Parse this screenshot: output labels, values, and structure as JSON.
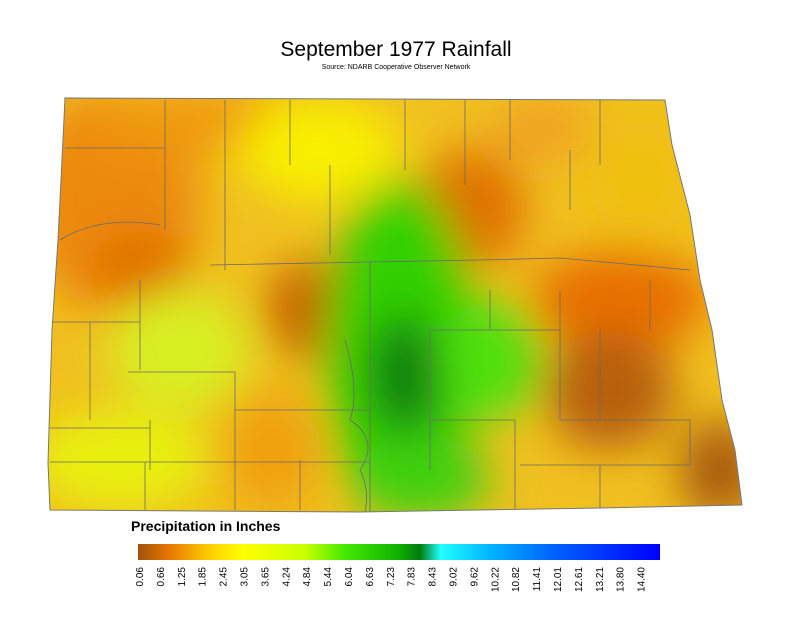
{
  "header": {
    "title": "September 1977 Rainfall",
    "source": "Source: NDARB Cooperative Observer Network"
  },
  "legend": {
    "title": "Precipitation in Inches",
    "labels": [
      "0.06",
      "0.66",
      "1.25",
      "1.85",
      "2.45",
      "3.05",
      "3.65",
      "4.24",
      "4.84",
      "5.44",
      "6.04",
      "6.63",
      "7.23",
      "7.83",
      "8.43",
      "9.02",
      "9.62",
      "10.22",
      "10.82",
      "11.41",
      "12.01",
      "12.61",
      "13.21",
      "13.80",
      "14.40"
    ]
  }
}
